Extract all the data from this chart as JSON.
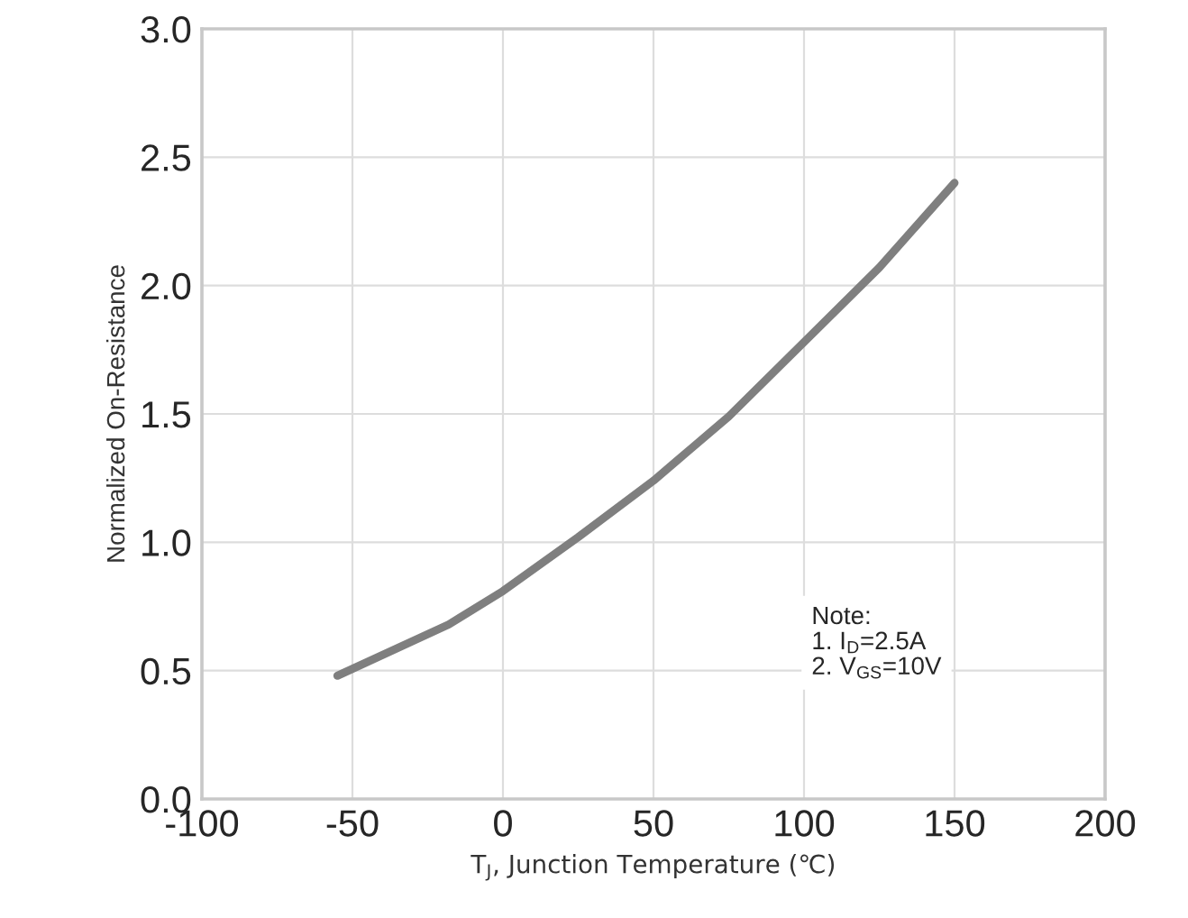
{
  "chart_data": {
    "type": "line",
    "xlabel": "T$_{J}$, Junction Temperature (℃)",
    "ylabel": "Normalized On-Resistance",
    "x": [
      -55,
      -18,
      0,
      25,
      50,
      75,
      100,
      125,
      150
    ],
    "series": [
      {
        "color": "#7f7f7f",
        "values": [
          0.48,
          0.68,
          0.81,
          1.02,
          1.24,
          1.49,
          1.78,
          2.07,
          2.4
        ]
      }
    ],
    "xlim": [
      -100,
      200
    ],
    "xticks": [
      -100,
      -50,
      0,
      50,
      100,
      150,
      200
    ],
    "ylim": [
      0.0,
      3.0
    ],
    "yticks": [
      {
        "value": 0,
        "label": "0.0"
      },
      {
        "value": 0.5,
        "label": "0.5"
      },
      {
        "value": 1.0,
        "label": "1.0"
      },
      {
        "value": 1.5,
        "label": "1.5"
      },
      {
        "value": 2.0,
        "label": "2.0"
      },
      {
        "value": 2.5,
        "label": "2.5"
      },
      {
        "value": 3.0,
        "label": "3.0"
      }
    ],
    "grid": true,
    "legend": false,
    "marker": "none",
    "line_style": "solid",
    "annotations": [
      "Note:\n1. I$_{D}$=2.5A\n2. V$_{GS}$=10V"
    ]
  }
}
